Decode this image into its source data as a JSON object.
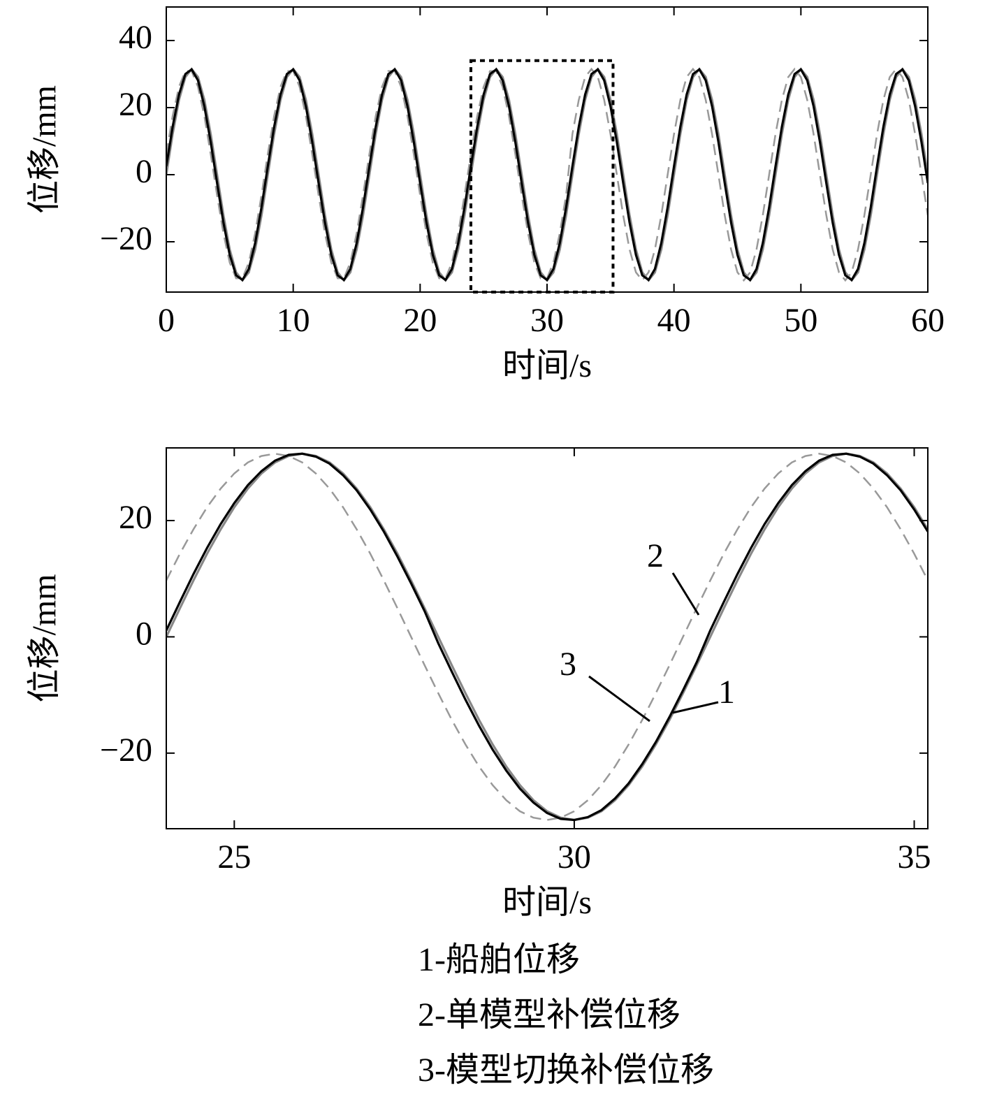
{
  "chart_data": [
    {
      "type": "line",
      "xlabel": "时间/s",
      "ylabel": "位移/mm",
      "xlim": [
        0,
        60
      ],
      "ylim": [
        -35,
        50
      ],
      "xticks": [
        0,
        10,
        20,
        30,
        40,
        50,
        60
      ],
      "yticks": [
        {
          "value": -20,
          "label": "−20"
        },
        0,
        20,
        40
      ],
      "zoom_box": {
        "x": [
          24,
          35.2
        ],
        "y": [
          -35,
          34
        ]
      },
      "x": [
        0,
        0.5,
        1,
        1.5,
        2,
        2.5,
        3,
        3.5,
        4,
        4.5,
        5,
        5.5,
        6,
        6.5,
        7,
        7.5,
        8,
        8.5,
        9,
        9.5,
        10,
        10.5,
        11,
        11.5,
        12,
        12.5,
        13,
        13.5,
        14,
        14.5,
        15,
        15.5,
        16,
        16.5,
        17,
        17.5,
        18,
        18.5,
        19,
        19.5,
        20,
        20.5,
        21,
        21.5,
        22,
        22.5,
        23,
        23.5,
        24,
        24.5,
        25,
        25.5,
        26,
        26.5,
        27,
        27.5,
        28,
        28.5,
        29,
        29.5,
        30,
        30.5,
        31,
        31.5,
        32,
        32.5,
        33,
        33.5,
        34,
        34.5,
        35,
        35.5,
        36,
        36.5,
        37,
        37.5,
        38,
        38.5,
        39,
        39.5,
        40,
        40.5,
        41,
        41.5,
        42,
        42.5,
        43,
        43.5,
        44,
        44.5,
        45,
        45.5,
        46,
        46.5,
        47,
        47.5,
        48,
        48.5,
        49,
        49.5,
        50,
        50.5,
        51,
        51.5,
        52,
        52.5,
        53,
        53.5,
        54,
        54.5,
        55,
        55.5,
        56,
        56.5,
        57,
        57.5,
        58,
        58.5,
        59,
        59.5,
        60
      ],
      "series": [
        {
          "color": "#888888",
          "linestyle": "solid",
          "values": [
            0,
            12.1,
            22.3,
            29.1,
            31.5,
            29.1,
            22.3,
            12.1,
            0,
            -12.1,
            -22.3,
            -29.1,
            -31.5,
            -29.1,
            -22.3,
            -12.1,
            0,
            12.1,
            22.3,
            29.1,
            31.5,
            29.1,
            22.3,
            12.1,
            0,
            -12.1,
            -22.3,
            -29.1,
            -31.5,
            -29.1,
            -22.3,
            -12.1,
            0,
            12.1,
            22.3,
            29.1,
            31.5,
            29.1,
            22.3,
            12.1,
            0,
            -12.1,
            -22.3,
            -29.1,
            -31.5,
            -29.1,
            -22.3,
            -12.1,
            0,
            12.1,
            22.3,
            29.1,
            31.5,
            29.1,
            22.3,
            12.1,
            0,
            -12.1,
            -22.3,
            -29.1,
            -31.5,
            -29.1,
            -22.3,
            -12.1,
            0,
            12.1,
            22.3,
            29.1,
            31.5,
            29.1,
            22.3,
            12.1,
            0,
            -12.1,
            -22.3,
            -29.1,
            -31.5,
            -29.1,
            -22.3,
            -12.1,
            0,
            12.1,
            22.3,
            29.1,
            31.5,
            29.1,
            22.3,
            12.1,
            0,
            -12.1,
            -22.3,
            -29.1,
            -31.5,
            -29.1,
            -22.3,
            -12.1,
            0,
            12.1,
            22.3,
            29.1,
            31.5,
            29.1,
            22.3,
            12.1,
            0,
            -12.1,
            -22.3,
            -29.1,
            -31.5,
            -29.1,
            -22.3,
            -12.1,
            0,
            12.1,
            22.3,
            29.1,
            31.5,
            29.1,
            22.3,
            12.1,
            0
          ]
        },
        {
          "color": "#999999",
          "linestyle": "dashed",
          "values": [
            6.1,
            17.5,
            26.2,
            30.9,
            30.9,
            26.2,
            17.5,
            6.1,
            -6.1,
            -17.5,
            -26.2,
            -30.9,
            -30.9,
            -26.2,
            -17.5,
            -6.1,
            6.1,
            17.5,
            26.2,
            30.9,
            30.9,
            26.2,
            17.5,
            6.1,
            -6.1,
            -17.5,
            -26.2,
            -30.9,
            -30.9,
            -26.2,
            -17.5,
            -6.1,
            6.1,
            17.5,
            26.2,
            30.9,
            30.9,
            26.2,
            17.5,
            6.1,
            -6.1,
            -17.5,
            -26.2,
            -30.9,
            -30.9,
            -26.2,
            -17.5,
            -6.1,
            6.1,
            17.5,
            26.2,
            30.9,
            30.9,
            26.2,
            17.5,
            6.1,
            -6.1,
            -17.5,
            -26.2,
            -30.9,
            -30.9,
            -26.2,
            -17.5,
            -6.1,
            12.1,
            22.3,
            29.1,
            31.5,
            29.1,
            22.3,
            12.1,
            0,
            -12.1,
            -22.3,
            -29.1,
            -31.5,
            -29.1,
            -22.3,
            -12.1,
            0,
            12.1,
            22.3,
            29.1,
            31.5,
            29.1,
            22.3,
            12.1,
            0,
            -12.1,
            -22.3,
            -29.1,
            -31.5,
            -29.1,
            -22.3,
            -12.1,
            0,
            12.1,
            22.3,
            29.1,
            31.5,
            29.1,
            22.3,
            12.1,
            0,
            -12.1,
            -22.3,
            -29.1,
            -31.5,
            -29.1,
            -22.3,
            -12.1,
            0,
            12.1,
            22.3,
            29.1,
            31.5,
            29.1,
            22.3,
            12.1,
            0,
            -12.1
          ]
        },
        {
          "color": "#000000",
          "linestyle": "solid",
          "values": [
            2.5,
            14.3,
            23.9,
            30.0,
            31.4,
            28.1,
            20.4,
            9.7,
            -2.5,
            -14.3,
            -23.9,
            -30.0,
            -31.4,
            -28.1,
            -20.4,
            -9.7,
            2.5,
            14.3,
            23.9,
            30.0,
            31.4,
            28.1,
            20.4,
            9.7,
            -2.5,
            -14.3,
            -23.9,
            -30.0,
            -31.4,
            -28.1,
            -20.4,
            -9.7,
            2.5,
            14.3,
            23.9,
            30.0,
            31.4,
            28.1,
            20.4,
            9.7,
            -2.5,
            -14.3,
            -23.9,
            -30.0,
            -31.4,
            -28.1,
            -20.4,
            -9.7,
            2.5,
            14.3,
            23.9,
            30.0,
            31.4,
            28.1,
            20.4,
            9.7,
            -2.5,
            -14.3,
            -23.9,
            -30.0,
            -31.4,
            -28.1,
            -20.4,
            -9.7,
            2.5,
            14.3,
            23.9,
            30.0,
            31.4,
            28.1,
            20.4,
            9.7,
            -2.5,
            -14.3,
            -23.9,
            -30.0,
            -31.4,
            -28.1,
            -20.4,
            -9.7,
            2.5,
            14.3,
            23.9,
            30.0,
            31.4,
            28.1,
            20.4,
            9.7,
            -2.5,
            -14.3,
            -23.9,
            -30.0,
            -31.4,
            -28.1,
            -20.4,
            -9.7,
            2.5,
            14.3,
            23.9,
            30.0,
            31.4,
            28.1,
            20.4,
            9.7,
            -2.5,
            -14.3,
            -23.9,
            -30.0,
            -31.4,
            -28.1,
            -20.4,
            -9.7,
            2.5,
            14.3,
            23.9,
            30.0,
            31.4,
            28.1,
            20.4,
            9.7,
            -2.5
          ]
        }
      ]
    },
    {
      "type": "line",
      "xlabel": "时间/s",
      "ylabel": "位移/mm",
      "xlim": [
        24,
        35.2
      ],
      "ylim": [
        -33,
        32.5
      ],
      "xticks": [
        25,
        30,
        35
      ],
      "yticks": [
        {
          "value": -20,
          "label": "−20"
        },
        0,
        20
      ],
      "annotations": [
        "1",
        "2",
        "3"
      ],
      "x": [
        24,
        24.2,
        24.4,
        24.6,
        24.8,
        25,
        25.2,
        25.4,
        25.6,
        25.8,
        26,
        26.2,
        26.4,
        26.6,
        26.8,
        27,
        27.2,
        27.4,
        27.6,
        27.8,
        28,
        28.2,
        28.4,
        28.6,
        28.8,
        29,
        29.2,
        29.4,
        29.6,
        29.8,
        30,
        30.2,
        30.4,
        30.6,
        30.8,
        31,
        31.2,
        31.4,
        31.6,
        31.8,
        32,
        32.2,
        32.4,
        32.6,
        32.8,
        33,
        33.2,
        33.4,
        33.6,
        33.8,
        34,
        34.2,
        34.4,
        34.6,
        34.8,
        35,
        35.2
      ],
      "series": [
        {
          "name": "1-船舶位移",
          "color": "#888888",
          "linestyle": "solid",
          "values": [
            0,
            4.9,
            9.7,
            14.3,
            18.5,
            22.3,
            25.5,
            28.1,
            30.0,
            31.1,
            31.5,
            31.1,
            30.0,
            28.1,
            25.5,
            22.3,
            18.5,
            14.3,
            9.7,
            4.9,
            0,
            -4.9,
            -9.7,
            -14.3,
            -18.5,
            -22.3,
            -25.5,
            -28.1,
            -30.0,
            -31.1,
            -31.5,
            -31.1,
            -30.0,
            -28.1,
            -25.5,
            -22.3,
            -18.5,
            -14.3,
            -9.7,
            -4.9,
            0,
            4.9,
            9.7,
            14.3,
            18.5,
            22.3,
            25.5,
            28.1,
            30.0,
            31.1,
            31.5,
            31.1,
            30.0,
            28.1,
            25.5,
            22.3,
            18.5
          ]
        },
        {
          "name": "2-单模型补偿位移",
          "color": "#999999",
          "linestyle": "dashed",
          "values": [
            9.7,
            14.3,
            18.5,
            22.3,
            25.5,
            28.1,
            30.0,
            31.1,
            31.5,
            31.1,
            30.0,
            28.1,
            25.5,
            22.3,
            18.5,
            14.3,
            9.7,
            4.9,
            0,
            -4.9,
            -9.7,
            -14.3,
            -18.5,
            -22.3,
            -25.5,
            -28.1,
            -30.0,
            -31.1,
            -31.5,
            -31.1,
            -30.0,
            -28.1,
            -25.5,
            -22.3,
            -18.5,
            -14.3,
            -9.7,
            -4.9,
            0,
            4.9,
            9.7,
            14.3,
            18.5,
            22.3,
            25.5,
            28.1,
            30.0,
            31.1,
            31.5,
            31.1,
            30.0,
            28.1,
            25.5,
            22.3,
            18.5,
            14.3,
            9.7
          ]
        },
        {
          "name": "3-模型切换补偿位移",
          "color": "#000000",
          "linestyle": "solid",
          "values": [
            1.1,
            6.0,
            10.8,
            15.3,
            19.4,
            23.0,
            26.1,
            28.5,
            30.3,
            31.3,
            31.5,
            31.0,
            29.8,
            27.8,
            25.2,
            21.9,
            18.1,
            13.8,
            9.2,
            4.4,
            -1.1,
            -6.0,
            -10.8,
            -15.3,
            -19.4,
            -23.0,
            -26.1,
            -28.5,
            -30.3,
            -31.3,
            -31.5,
            -31.0,
            -29.8,
            -27.8,
            -25.2,
            -21.9,
            -18.1,
            -13.8,
            -9.2,
            -4.4,
            1.1,
            6.0,
            10.8,
            15.3,
            19.4,
            23.0,
            26.1,
            28.5,
            30.3,
            31.3,
            31.5,
            31.0,
            29.8,
            27.8,
            25.2,
            21.9,
            18.1
          ]
        }
      ]
    }
  ]
}
